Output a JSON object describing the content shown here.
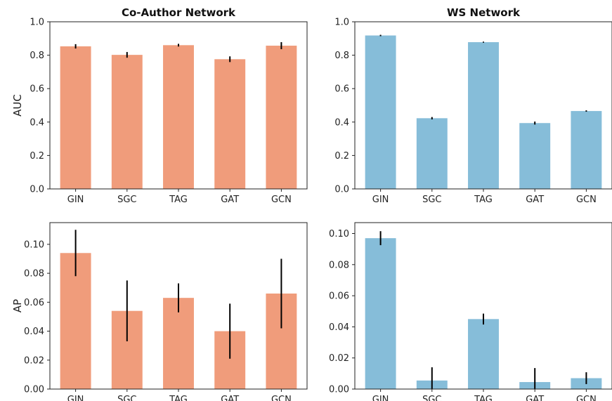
{
  "chart_data": [
    {
      "type": "bar",
      "title": "Co-Author Network",
      "xlabel": "",
      "ylabel": "AUC",
      "ylim": [
        0,
        1.0
      ],
      "yticks": [
        "0.0",
        "0.2",
        "0.4",
        "0.6",
        "0.8",
        "1.0"
      ],
      "categories": [
        "GIN",
        "SGC",
        "TAG",
        "GAT",
        "GCN"
      ],
      "values": [
        0.853,
        0.802,
        0.86,
        0.776,
        0.857
      ],
      "errors": [
        0.013,
        0.017,
        0.008,
        0.017,
        0.021
      ],
      "color": "#f09c7b"
    },
    {
      "type": "bar",
      "title": "WS Network",
      "xlabel": "",
      "ylabel": "",
      "ylim": [
        0,
        1.0
      ],
      "yticks": [
        "0.0",
        "0.2",
        "0.4",
        "0.6",
        "0.8",
        "1.0"
      ],
      "categories": [
        "GIN",
        "SGC",
        "TAG",
        "GAT",
        "GCN"
      ],
      "values": [
        0.918,
        0.423,
        0.878,
        0.394,
        0.466
      ],
      "errors": [
        0.004,
        0.007,
        0.003,
        0.009,
        0.004
      ],
      "color": "#86bdd9"
    },
    {
      "type": "bar",
      "title": "",
      "xlabel": "",
      "ylabel": "AP",
      "ylim": [
        0,
        0.115
      ],
      "yticks": [
        "0.00",
        "0.02",
        "0.04",
        "0.06",
        "0.08",
        "0.10"
      ],
      "categories": [
        "GIN",
        "SGC",
        "TAG",
        "GAT",
        "GCN"
      ],
      "values": [
        0.094,
        0.054,
        0.063,
        0.04,
        0.066
      ],
      "errors": [
        0.016,
        0.021,
        0.01,
        0.019,
        0.024
      ],
      "color": "#f09c7b"
    },
    {
      "type": "bar",
      "title": "",
      "xlabel": "",
      "ylabel": "",
      "ylim": [
        0,
        0.107
      ],
      "yticks": [
        "0.00",
        "0.02",
        "0.04",
        "0.06",
        "0.08",
        "0.10"
      ],
      "categories": [
        "GIN",
        "SGC",
        "TAG",
        "GAT",
        "GCN"
      ],
      "values": [
        0.097,
        0.0055,
        0.045,
        0.0045,
        0.007
      ],
      "errors": [
        0.0045,
        0.0085,
        0.0035,
        0.009,
        0.0038
      ],
      "color": "#86bdd9"
    }
  ]
}
